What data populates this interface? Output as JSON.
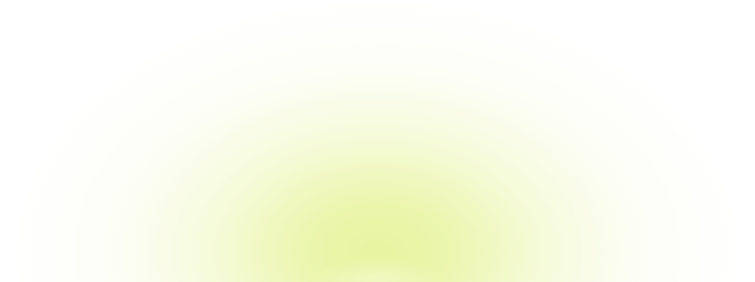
{
  "background": {
    "base_color": "#ffffff",
    "glow_color": "#e8f4a0",
    "glow_highlight_color": "#f4facd"
  }
}
